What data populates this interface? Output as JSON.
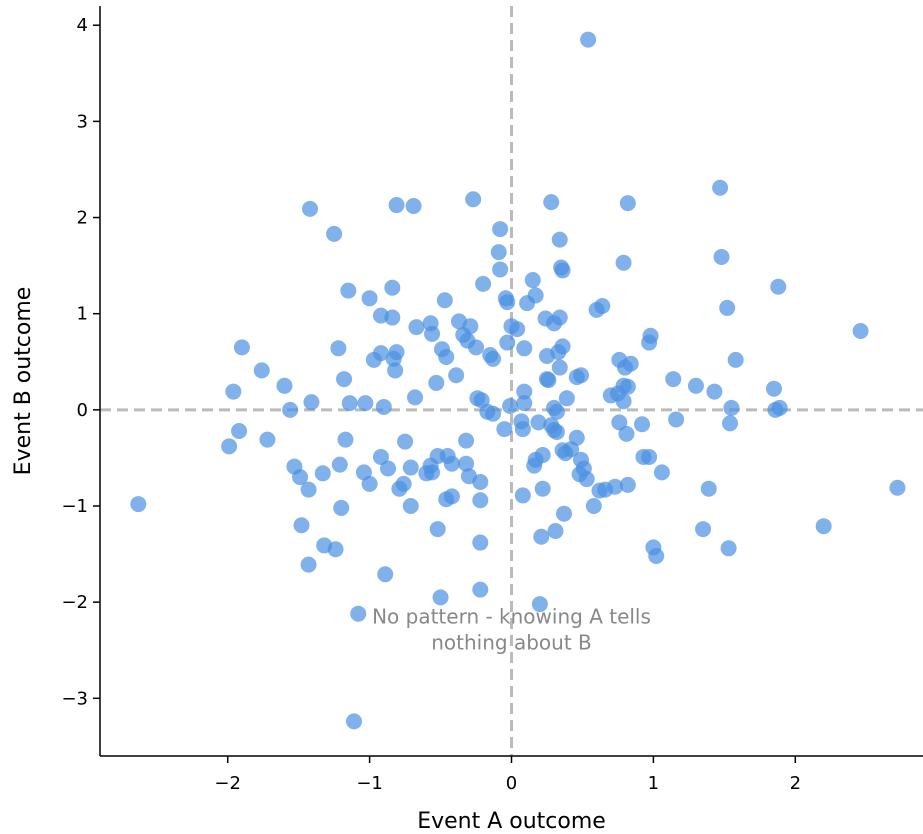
{
  "chart_data": {
    "type": "scatter",
    "title": "",
    "xlabel": "Event A outcome",
    "ylabel": "Event B outcome",
    "xlim": [
      -2.9,
      2.9
    ],
    "ylim": [
      -3.6,
      4.2
    ],
    "xticks": [
      -2,
      -1,
      0,
      1,
      2
    ],
    "yticks": [
      -3,
      -2,
      -1,
      0,
      1,
      2,
      3,
      4
    ],
    "xtick_labels": [
      "−2",
      "−1",
      "0",
      "1",
      "2"
    ],
    "ytick_labels": [
      "−3",
      "−2",
      "−1",
      "0",
      "1",
      "2",
      "3",
      "4"
    ],
    "grid": false,
    "reference_lines": {
      "x": 0,
      "y": 0,
      "style": "dashed",
      "color": "#bbbbbb"
    },
    "annotation": {
      "lines": [
        "No pattern - knowing A tells",
        "nothing about B"
      ],
      "x": 0,
      "y": -2.2
    },
    "marker_color": "#4a90e2",
    "series": [
      {
        "points": [
          [
            0.54,
            3.85
          ],
          [
            -1.42,
            2.09
          ],
          [
            -0.81,
            2.13
          ],
          [
            -0.69,
            2.12
          ],
          [
            -0.27,
            2.19
          ],
          [
            0.28,
            2.16
          ],
          [
            0.82,
            2.15
          ],
          [
            1.47,
            2.31
          ],
          [
            -1.25,
            1.83
          ],
          [
            -0.08,
            1.88
          ],
          [
            0.34,
            1.77
          ],
          [
            -0.09,
            1.64
          ],
          [
            1.48,
            1.59
          ],
          [
            0.79,
            1.53
          ],
          [
            -0.08,
            1.46
          ],
          [
            0.35,
            1.48
          ],
          [
            0.36,
            1.45
          ],
          [
            0.15,
            1.35
          ],
          [
            -0.2,
            1.31
          ],
          [
            -1.15,
            1.24
          ],
          [
            -0.84,
            1.27
          ],
          [
            1.88,
            1.28
          ],
          [
            -0.04,
            1.16
          ],
          [
            0.17,
            1.19
          ],
          [
            -1.0,
            1.16
          ],
          [
            -0.47,
            1.14
          ],
          [
            -0.03,
            1.12
          ],
          [
            0.11,
            1.11
          ],
          [
            0.6,
            1.04
          ],
          [
            0.64,
            1.08
          ],
          [
            1.52,
            1.06
          ],
          [
            -0.92,
            0.98
          ],
          [
            -0.84,
            0.96
          ],
          [
            -0.57,
            0.9
          ],
          [
            -0.37,
            0.92
          ],
          [
            -0.29,
            0.87
          ],
          [
            -0.67,
            0.86
          ],
          [
            0.0,
            0.87
          ],
          [
            0.04,
            0.84
          ],
          [
            0.24,
            0.95
          ],
          [
            0.3,
            0.9
          ],
          [
            0.34,
            0.96
          ],
          [
            2.46,
            0.82
          ],
          [
            -0.56,
            0.79
          ],
          [
            -0.34,
            0.78
          ],
          [
            -0.31,
            0.72
          ],
          [
            -0.25,
            0.65
          ],
          [
            -0.03,
            0.7
          ],
          [
            0.09,
            0.64
          ],
          [
            0.33,
            0.6
          ],
          [
            0.36,
            0.66
          ],
          [
            0.97,
            0.7
          ],
          [
            0.98,
            0.77
          ],
          [
            -1.9,
            0.65
          ],
          [
            -1.22,
            0.64
          ],
          [
            -0.49,
            0.63
          ],
          [
            -0.46,
            0.55
          ],
          [
            -0.15,
            0.57
          ],
          [
            -0.13,
            0.53
          ],
          [
            0.25,
            0.56
          ],
          [
            -0.92,
            0.59
          ],
          [
            -0.81,
            0.6
          ],
          [
            -0.83,
            0.53
          ],
          [
            -0.97,
            0.52
          ],
          [
            1.58,
            0.52
          ],
          [
            0.76,
            0.52
          ],
          [
            0.8,
            0.44
          ],
          [
            0.84,
            0.48
          ],
          [
            0.34,
            0.44
          ],
          [
            -0.82,
            0.41
          ],
          [
            -1.76,
            0.41
          ],
          [
            -0.39,
            0.36
          ],
          [
            0.46,
            0.34
          ],
          [
            0.49,
            0.36
          ],
          [
            -1.18,
            0.32
          ],
          [
            0.25,
            0.32
          ],
          [
            0.26,
            0.31
          ],
          [
            1.14,
            0.32
          ],
          [
            -0.53,
            0.28
          ],
          [
            -1.6,
            0.25
          ],
          [
            0.79,
            0.25
          ],
          [
            0.82,
            0.24
          ],
          [
            1.3,
            0.25
          ],
          [
            -1.96,
            0.19
          ],
          [
            0.09,
            0.19
          ],
          [
            0.75,
            0.17
          ],
          [
            0.7,
            0.15
          ],
          [
            1.43,
            0.19
          ],
          [
            1.85,
            0.22
          ],
          [
            -0.68,
            0.13
          ],
          [
            0.39,
            0.12
          ],
          [
            -0.24,
            0.12
          ],
          [
            -0.21,
            0.1
          ],
          [
            -1.41,
            0.08
          ],
          [
            -1.14,
            0.07
          ],
          [
            -1.03,
            0.07
          ],
          [
            0.79,
            0.09
          ],
          [
            -1.56,
            0.0
          ],
          [
            -0.9,
            0.03
          ],
          [
            -0.17,
            -0.02
          ],
          [
            -0.13,
            -0.04
          ],
          [
            -0.01,
            0.04
          ],
          [
            0.09,
            0.07
          ],
          [
            0.3,
            0.02
          ],
          [
            0.32,
            -0.02
          ],
          [
            1.55,
            0.02
          ],
          [
            1.86,
            0.0
          ],
          [
            1.89,
            0.02
          ],
          [
            0.07,
            -0.12
          ],
          [
            0.19,
            -0.13
          ],
          [
            0.28,
            -0.16
          ],
          [
            0.3,
            -0.21
          ],
          [
            0.32,
            -0.23
          ],
          [
            0.08,
            -0.2
          ],
          [
            -0.05,
            -0.2
          ],
          [
            1.16,
            -0.1
          ],
          [
            0.76,
            -0.13
          ],
          [
            0.81,
            -0.25
          ],
          [
            0.92,
            -0.15
          ],
          [
            1.54,
            -0.14
          ],
          [
            -1.92,
            -0.22
          ],
          [
            -1.99,
            -0.38
          ],
          [
            -1.72,
            -0.31
          ],
          [
            -1.17,
            -0.31
          ],
          [
            -0.75,
            -0.33
          ],
          [
            -0.32,
            -0.32
          ],
          [
            0.42,
            -0.41
          ],
          [
            0.46,
            -0.29
          ],
          [
            0.36,
            -0.42
          ],
          [
            0.38,
            -0.45
          ],
          [
            0.22,
            -0.47
          ],
          [
            0.17,
            -0.52
          ],
          [
            0.49,
            -0.52
          ],
          [
            -0.52,
            -0.48
          ],
          [
            -0.92,
            -0.49
          ],
          [
            -0.45,
            -0.48
          ],
          [
            -0.42,
            -0.56
          ],
          [
            -0.32,
            -0.56
          ],
          [
            0.16,
            -0.58
          ],
          [
            0.93,
            -0.49
          ],
          [
            0.97,
            -0.49
          ],
          [
            -1.21,
            -0.57
          ],
          [
            -1.33,
            -0.66
          ],
          [
            -0.87,
            -0.61
          ],
          [
            -0.71,
            -0.6
          ],
          [
            -0.6,
            -0.66
          ],
          [
            -0.57,
            -0.58
          ],
          [
            -0.56,
            -0.65
          ],
          [
            -1.53,
            -0.59
          ],
          [
            -1.49,
            -0.7
          ],
          [
            -1.04,
            -0.65
          ],
          [
            -0.3,
            -0.69
          ],
          [
            -0.22,
            -0.75
          ],
          [
            0.48,
            -0.67
          ],
          [
            0.51,
            -0.61
          ],
          [
            0.53,
            -0.72
          ],
          [
            1.06,
            -0.65
          ],
          [
            -1.43,
            -0.83
          ],
          [
            -1.0,
            -0.77
          ],
          [
            -0.79,
            -0.82
          ],
          [
            -0.76,
            -0.77
          ],
          [
            -0.42,
            -0.9
          ],
          [
            -0.46,
            -0.93
          ],
          [
            0.08,
            -0.89
          ],
          [
            0.22,
            -0.82
          ],
          [
            0.62,
            -0.84
          ],
          [
            0.66,
            -0.83
          ],
          [
            0.73,
            -0.8
          ],
          [
            0.82,
            -0.78
          ],
          [
            1.39,
            -0.82
          ],
          [
            2.72,
            -0.81
          ],
          [
            -2.63,
            -0.98
          ],
          [
            -1.2,
            -1.02
          ],
          [
            -0.71,
            -1.0
          ],
          [
            -0.22,
            -0.94
          ],
          [
            0.37,
            -1.08
          ],
          [
            0.58,
            -1.0
          ],
          [
            -1.48,
            -1.2
          ],
          [
            -0.52,
            -1.24
          ],
          [
            0.31,
            -1.26
          ],
          [
            0.21,
            -1.32
          ],
          [
            1.35,
            -1.24
          ],
          [
            2.2,
            -1.21
          ],
          [
            -1.32,
            -1.41
          ],
          [
            -1.24,
            -1.45
          ],
          [
            -0.22,
            -1.38
          ],
          [
            1.0,
            -1.43
          ],
          [
            1.02,
            -1.52
          ],
          [
            1.53,
            -1.44
          ],
          [
            -1.43,
            -1.61
          ],
          [
            -0.89,
            -1.71
          ],
          [
            -0.22,
            -1.87
          ],
          [
            -0.5,
            -1.95
          ],
          [
            0.2,
            -2.02
          ],
          [
            -1.08,
            -2.12
          ],
          [
            -1.11,
            -3.24
          ]
        ]
      }
    ]
  }
}
